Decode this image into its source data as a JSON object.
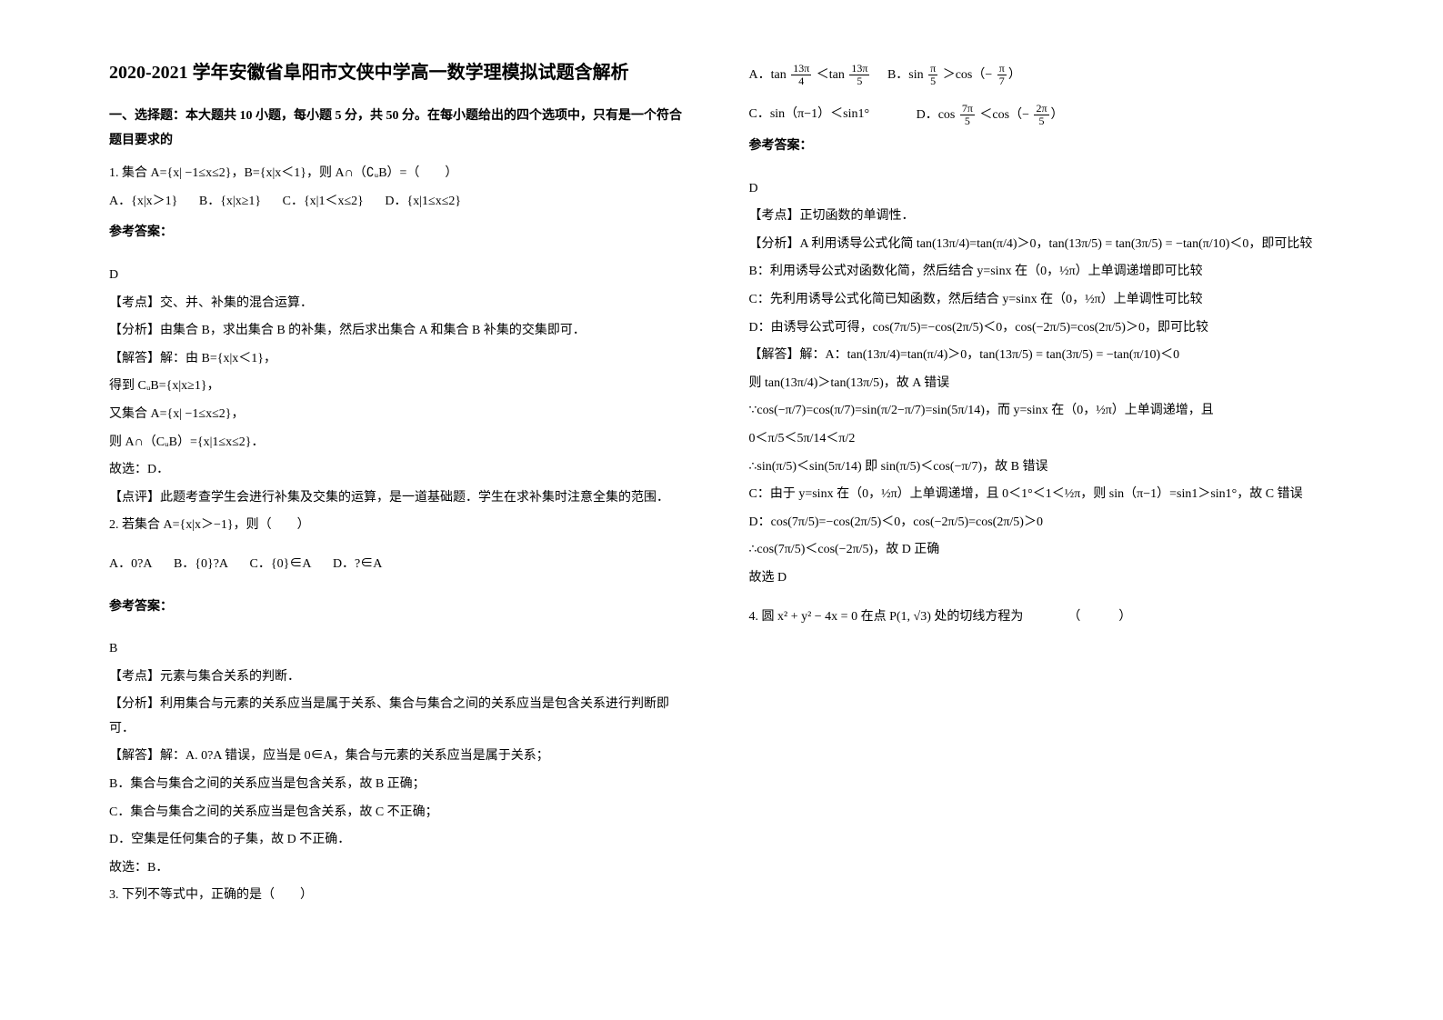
{
  "header": {
    "title": "2020-2021 学年安徽省阜阳市文侠中学高一数学理模拟试题含解析",
    "section1_title": "一、选择题：本大题共 10 小题，每小题 5 分，共 50 分。在每小题给出的四个选项中，只有是一个符合题目要求的"
  },
  "q1": {
    "stem": "1. 集合 A={x| −1≤x≤2}，B={x|x＜1}，则 A∩（∁ᵤB）=（　　）",
    "optA": "A．{x|x＞1}",
    "optB": "B．{x|x≥1}",
    "optC": "C．{x|1＜x≤2}",
    "optD": "D．{x|1≤x≤2}",
    "answer_label": "参考答案：",
    "answer": "D",
    "point": "【考点】交、并、补集的混合运算．",
    "analysis": "【分析】由集合 B，求出集合 B 的补集，然后求出集合 A 和集合 B 补集的交集即可．",
    "solve1": "【解答】解：由 B={x|x＜1}，",
    "solve2": "得到 CᵤB={x|x≥1}，",
    "solve3": "又集合 A={x| −1≤x≤2}，",
    "solve4": "则 A∩（CᵤB）={x|1≤x≤2}．",
    "solve5": "故选：D．",
    "comment": "【点评】此题考查学生会进行补集及交集的运算，是一道基础题．学生在求补集时注意全集的范围．"
  },
  "q2": {
    "stem": "2. 若集合 A={x|x＞−1}，则（　　）",
    "optA": "A．0?A",
    "optB": "B．{0}?A",
    "optC": "C．{0}∈A",
    "optD": "D．?∈A",
    "answer_label": "参考答案：",
    "answer": "B",
    "point": "【考点】元素与集合关系的判断．",
    "analysis": "【分析】利用集合与元素的关系应当是属于关系、集合与集合之间的关系应当是包含关系进行判断即可．",
    "solve1": "【解答】解：A. 0?A 错误，应当是 0∈A，集合与元素的关系应当是属于关系；",
    "solve2": "B．集合与集合之间的关系应当是包含关系，故 B 正确；",
    "solve3": "C．集合与集合之间的关系应当是包含关系，故 C 不正确；",
    "solve4": "D．空集是任何集合的子集，故 D 不正确．",
    "solve5": "故选：B．"
  },
  "q3": {
    "stem": "3. 下列不等式中，正确的是（　　）",
    "optA_pre": "A．tan ",
    "optA_num1": "13π",
    "optA_den1": "4",
    "optA_mid": " ＜tan ",
    "optA_num2": "13π",
    "optA_den2": "5",
    "optB_pre": "　B．sin ",
    "optB_num1": "π",
    "optB_den1": "5",
    "optB_mid": " ＞cos（− ",
    "optB_num2": "π",
    "optB_den2": "7",
    "optB_post": "）",
    "optC": "C．sin（π−1）＜sin1°",
    "optD_pre": "　　D．cos ",
    "optD_num1": "7π",
    "optD_den1": "5",
    "optD_mid": " ＜cos（− ",
    "optD_num2": "2π",
    "optD_den2": "5",
    "optD_post": "）",
    "answer_label": "参考答案：",
    "answer": "D",
    "point": "【考点】正切函数的单调性．",
    "ana_pre": "【分析】A 利用诱导公式化简 ",
    "ana_a": "tan(13π/4)=tan(π/4)＞0，tan(13π/5) = tan(3π/5) = −tan(π/10)＜0，即可比较",
    "ana_b": "B：利用诱导公式对函数化简，然后结合 y=sinx 在（0，½π）上单调递增即可比较",
    "ana_c": "C：先利用诱导公式化简已知函数，然后结合 y=sinx 在（0，½π）上单调性可比较",
    "ana_d": "D：由诱导公式可得，cos(7π/5)=−cos(2π/5)＜0，cos(−2π/5)=cos(2π/5)＞0，即可比较",
    "solve_pre": "【解答】解：A：tan(13π/4)=tan(π/4)＞0，tan(13π/5) = tan(3π/5) = −tan(π/10)＜0",
    "solve_a2": "则 tan(13π/4)＞tan(13π/5)，故 A 错误",
    "solve_b1": "∵cos(−π/7)=cos(π/7)=sin(π/2−π/7)=sin(5π/14)，而 y=sinx 在（0，½π）上单调递增，且",
    "solve_b2": "0＜π/5＜5π/14＜π/2",
    "solve_b3": "∴sin(π/5)＜sin(5π/14) 即 sin(π/5)＜cos(−π/7)，故 B 错误",
    "solve_c": "C：由于 y=sinx 在（0，½π）上单调递增，且 0＜1°＜1＜½π，则 sin（π−1）=sin1＞sin1°，故 C 错误",
    "solve_d1": "D：cos(7π/5)=−cos(2π/5)＜0，cos(−2π/5)=cos(2π/5)＞0",
    "solve_d2": "∴cos(7π/5)＜cos(−2π/5)，故 D 正确",
    "solve_end": "故选 D"
  },
  "q4": {
    "stem_pre": "4. 圆 ",
    "stem_math": "x² + y² − 4x = 0",
    "stem_mid": " 在点 ",
    "stem_point": "P(1, √3)",
    "stem_post": " 处的切线方程为　　　　（　　　）"
  },
  "colors": {
    "text": "#000000",
    "bg": "#ffffff"
  }
}
